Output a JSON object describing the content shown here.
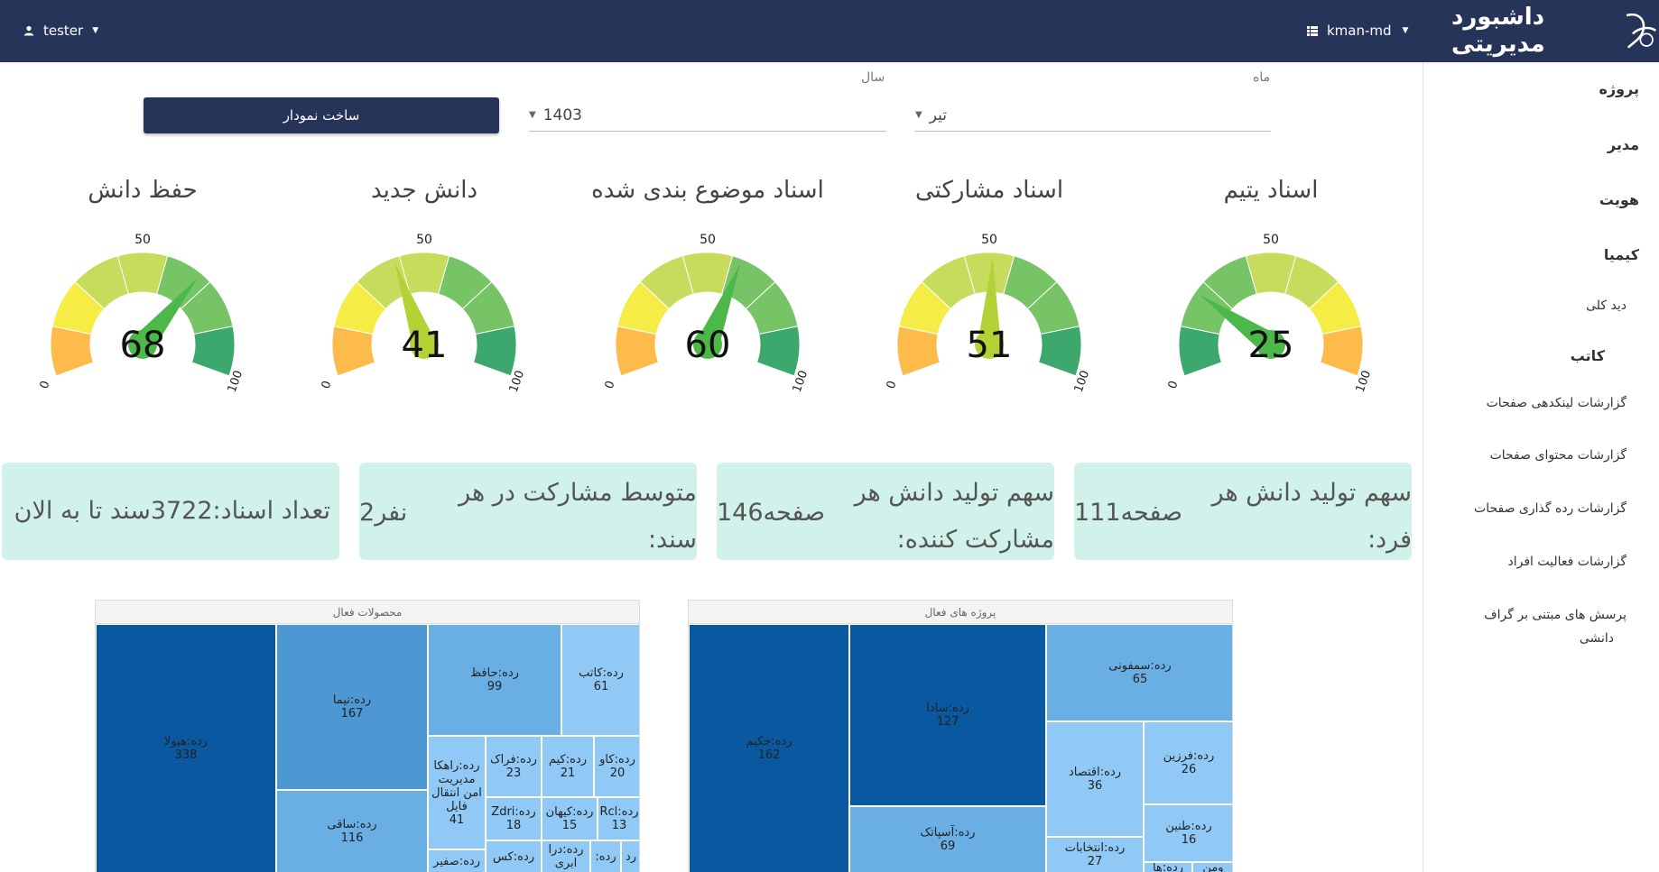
{
  "header": {
    "user_name": "tester",
    "user_icon": "person-icon",
    "db_name": "kman-md",
    "db_icon": "list-icon",
    "brand_title": "داشبورد مدیریتی",
    "logo_icon": "kman-logo"
  },
  "sidebar": {
    "items": [
      {
        "label": "پروژه",
        "type": "head"
      },
      {
        "label": "مدیر",
        "type": "head"
      },
      {
        "label": "هویت",
        "type": "head"
      },
      {
        "label": "کیمیا",
        "type": "head"
      },
      {
        "label": "دید کلی",
        "type": "sub"
      },
      {
        "label": "کاتب",
        "type": "head"
      },
      {
        "label": "گزارشات لینکدهی صفحات",
        "type": "sub"
      },
      {
        "label": "گزارشات محتوای صفحات",
        "type": "sub"
      },
      {
        "label": "گزارشات رده گذاری صفحات",
        "type": "sub"
      },
      {
        "label": "گزارشات فعالیت افراد",
        "type": "sub"
      },
      {
        "label": "پرسش های مبتنی بر گراف",
        "type": "sub"
      },
      {
        "label": "دانشی",
        "type": "sub"
      }
    ]
  },
  "filters": {
    "month_label": "ماه",
    "month_value": "تیر",
    "year_label": "سال",
    "year_value": "1403",
    "build_button": "ساخت نمودار"
  },
  "gauges": [
    {
      "title": "اسناد یتیم",
      "value": 25,
      "min": "0",
      "max": "100",
      "mid": "50",
      "reversed": true
    },
    {
      "title": "اسناد مشارکتی",
      "value": 51,
      "min": "0",
      "max": "100",
      "mid": "50",
      "reversed": false
    },
    {
      "title": "اسناد موضوع بندی شده",
      "value": 60,
      "min": "0",
      "max": "100",
      "mid": "50",
      "reversed": false
    },
    {
      "title": "دانش جدید",
      "value": 41,
      "min": "0",
      "max": "100",
      "mid": "50",
      "reversed": false
    },
    {
      "title": "حفظ دانش",
      "value": 68,
      "min": "0",
      "max": "100",
      "mid": "50",
      "reversed": false
    }
  ],
  "stats": [
    {
      "label_line1": "سهم تولید دانش هر",
      "label_line2": "فرد:",
      "value": "111صفحه"
    },
    {
      "label_line1": "سهم تولید دانش هر",
      "label_line2": "مشارکت کننده:",
      "value": "146صفحه"
    },
    {
      "label_line1": "متوسط مشارکت در هر",
      "label_line2": "سند:",
      "value": "2نفر"
    },
    {
      "label_line1": "تعداد اسناد:3722سند تا به الان",
      "label_line2": "",
      "value": ""
    }
  ],
  "treemaps": [
    {
      "title": "پروژه های فعال",
      "cells": [
        {
          "name": "رده:حکیم",
          "value": "162",
          "color": "#0a58a0"
        },
        {
          "name": "رده:سادا",
          "value": "127",
          "color": "#0a58a0"
        },
        {
          "name": "رده:سمفونی",
          "value": "65",
          "color": "#6aafe4"
        },
        {
          "name": "رده:اقتصاد",
          "value": "36",
          "color": "#90c9f5"
        },
        {
          "name": "رده:فرزین",
          "value": "26",
          "color": "#90c9f5"
        },
        {
          "name": "رده:طنین",
          "value": "16",
          "color": "#90c9f5"
        },
        {
          "name": "رده:آسپاتک",
          "value": "69",
          "color": "#6aafe4"
        },
        {
          "name": "رده:انتخابات",
          "value": "27",
          "color": "#90c9f5"
        },
        {
          "name": "رده:ها",
          "value": "",
          "color": "#90c9f5"
        },
        {
          "name": "ومن",
          "value": "",
          "color": "#90c9f5"
        }
      ]
    },
    {
      "title": "محصولات فعال",
      "cells": [
        {
          "name": "رده:هیولا",
          "value": "338",
          "color": "#0a58a0"
        },
        {
          "name": "رده:نیما",
          "value": "167",
          "color": "#4d97d3"
        },
        {
          "name": "رده:حافظ",
          "value": "99",
          "color": "#6aafe4"
        },
        {
          "name": "رده:کاتب",
          "value": "61",
          "color": "#90c9f5"
        },
        {
          "name": "رده:ساقی",
          "value": "116",
          "color": "#6aafe4"
        },
        {
          "name": "رده:راهکا مدیریت امن انتقال فایل",
          "value": "41",
          "color": "#90c9f5"
        },
        {
          "name": "رده:فراک",
          "value": "23",
          "color": "#90c9f5"
        },
        {
          "name": "رده:کیم",
          "value": "21",
          "color": "#90c9f5"
        },
        {
          "name": "رده:کاو",
          "value": "20",
          "color": "#90c9f5"
        },
        {
          "name": "رده:Zdri",
          "value": "18",
          "color": "#90c9f5"
        },
        {
          "name": "رده:کیهان",
          "value": "15",
          "color": "#90c9f5"
        },
        {
          "name": "رده:Rcl",
          "value": "13",
          "color": "#90c9f5"
        },
        {
          "name": "رده:درا ابری",
          "value": "",
          "color": "#90c9f5"
        },
        {
          "name": "رده:",
          "value": "",
          "color": "#90c9f5"
        },
        {
          "name": "رد",
          "value": "",
          "color": "#90c9f5"
        },
        {
          "name": "رده:صفیر",
          "value": "",
          "color": "#90c9f5"
        },
        {
          "name": "رده:کس",
          "value": "",
          "color": "#90c9f5"
        }
      ]
    }
  ]
}
